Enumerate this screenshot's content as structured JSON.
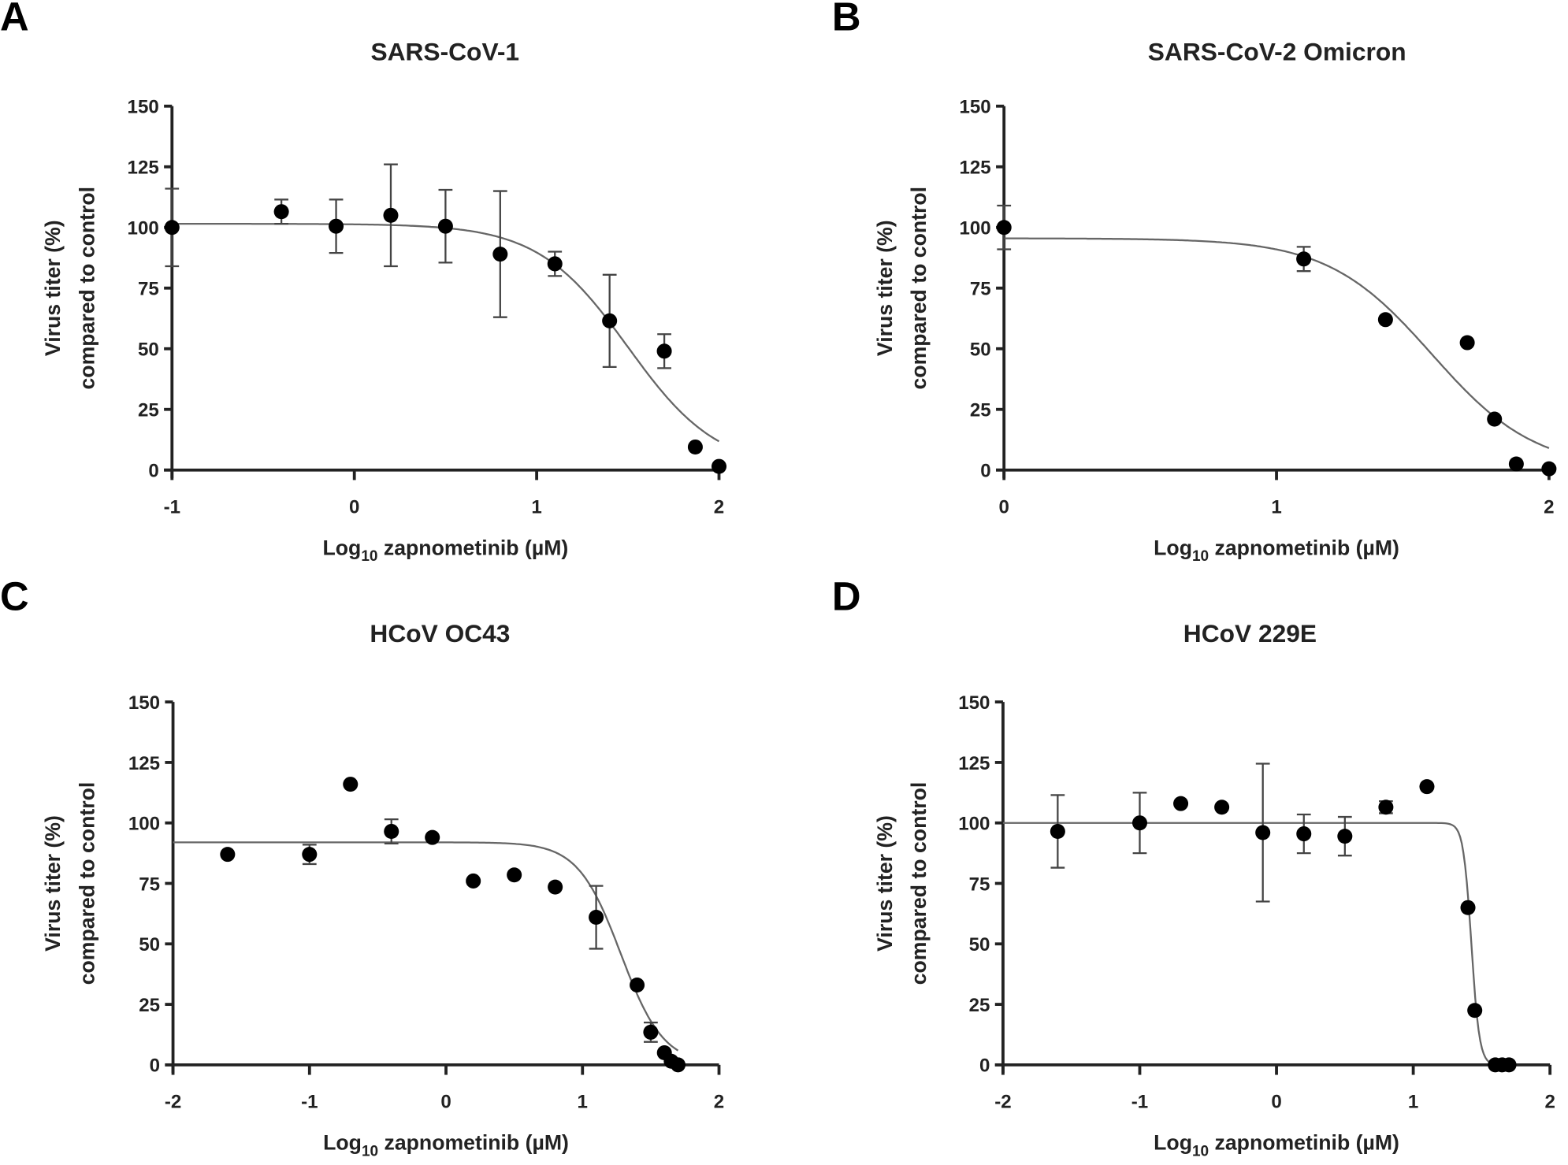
{
  "chart_data": [
    {
      "type": "scatter",
      "panel": "A",
      "title": "SARS-CoV-1",
      "xlabel": "Log10 zapnometinib (µM)",
      "xlabel_main": "Log",
      "xlabel_sub": "10",
      "xlabel_rest": " zapnometinib (µM)",
      "ylabel": [
        "Virus titer (%)",
        "compared to control"
      ],
      "xlim": [
        -1,
        2
      ],
      "ylim": [
        0,
        150
      ],
      "xticks": [
        "-1",
        "0",
        "1",
        "2"
      ],
      "xtickvals": [
        -1,
        0,
        1,
        2
      ],
      "yticks": [
        "0",
        "25",
        "50",
        "75",
        "100",
        "125",
        "150"
      ],
      "ytickvals": [
        0,
        25,
        50,
        75,
        100,
        125,
        150
      ],
      "points": [
        {
          "x": -1,
          "y": 100,
          "err": 16
        },
        {
          "x": -0.4,
          "y": 106.5,
          "err": 5
        },
        {
          "x": -0.1,
          "y": 100.5,
          "err": 11
        },
        {
          "x": 0.2,
          "y": 105,
          "err": 21
        },
        {
          "x": 0.5,
          "y": 100.5,
          "err": 15
        },
        {
          "x": 0.8,
          "y": 89,
          "err": 26
        },
        {
          "x": 1.1,
          "y": 85,
          "err": 5
        },
        {
          "x": 1.4,
          "y": 61.5,
          "err": 19
        },
        {
          "x": 1.7,
          "y": 49,
          "err": 7
        },
        {
          "x": 1.87,
          "y": 9.5,
          "err": 0
        },
        {
          "x": 2.0,
          "y": 1.5,
          "err": 0
        }
      ],
      "fit": {
        "top": 101.5,
        "bottom": 0,
        "log_ic50": 1.5,
        "hill": 1.76,
        "xrange": [
          -1,
          2
        ]
      }
    },
    {
      "type": "scatter",
      "panel": "B",
      "title": "SARS-CoV-2 Omicron",
      "xlabel": "Log10 zapnometinib (µM)",
      "xlabel_main": "Log",
      "xlabel_sub": "10",
      "xlabel_rest": " zapnometinib (µM)",
      "ylabel": [
        "Virus titer (%)",
        "compared to control"
      ],
      "xlim": [
        0,
        2
      ],
      "ylim": [
        0,
        150
      ],
      "xticks": [
        "0",
        "1",
        "2"
      ],
      "xtickvals": [
        0,
        1,
        2
      ],
      "yticks": [
        "0",
        "25",
        "50",
        "75",
        "100",
        "125",
        "150"
      ],
      "ytickvals": [
        0,
        25,
        50,
        75,
        100,
        125,
        150
      ],
      "points": [
        {
          "x": 0,
          "y": 100,
          "err": 9
        },
        {
          "x": 1.1,
          "y": 87,
          "err": 5
        },
        {
          "x": 1.4,
          "y": 62,
          "err": 0
        },
        {
          "x": 1.7,
          "y": 52.5,
          "err": 0
        },
        {
          "x": 1.8,
          "y": 21,
          "err": 0
        },
        {
          "x": 1.88,
          "y": 2.5,
          "err": 0
        },
        {
          "x": 2.0,
          "y": 0.5,
          "err": 0
        }
      ],
      "fit": {
        "top": 95.5,
        "bottom": 0,
        "log_ic50": 1.57,
        "hill": 2.28,
        "xrange": [
          0,
          2
        ]
      }
    },
    {
      "type": "scatter",
      "panel": "C",
      "title": "HCoV OC43",
      "xlabel": "Log10 zapnometinib (µM)",
      "xlabel_main": "Log",
      "xlabel_sub": "10",
      "xlabel_rest": " zapnometinib (µM)",
      "ylabel": [
        "Virus titer (%)",
        "compared to control"
      ],
      "xlim": [
        -2,
        2
      ],
      "ylim": [
        0,
        150
      ],
      "xticks": [
        "-2",
        "-1",
        "0",
        "1",
        "2"
      ],
      "xtickvals": [
        -2,
        -1,
        0,
        1,
        2
      ],
      "yticks": [
        "0",
        "25",
        "50",
        "75",
        "100",
        "125",
        "150"
      ],
      "ytickvals": [
        0,
        25,
        50,
        75,
        100,
        125,
        150
      ],
      "points": [
        {
          "x": -1.6,
          "y": 87,
          "err": 0
        },
        {
          "x": -1,
          "y": 87,
          "err": 4
        },
        {
          "x": -0.7,
          "y": 116,
          "err": 0
        },
        {
          "x": -0.4,
          "y": 96.5,
          "err": 5
        },
        {
          "x": -0.1,
          "y": 94,
          "err": 0
        },
        {
          "x": 0.2,
          "y": 76,
          "err": 0
        },
        {
          "x": 0.5,
          "y": 78.5,
          "err": 0
        },
        {
          "x": 0.8,
          "y": 73.5,
          "err": 0
        },
        {
          "x": 1.1,
          "y": 61,
          "err": 13
        },
        {
          "x": 1.4,
          "y": 33,
          "err": 0
        },
        {
          "x": 1.5,
          "y": 13.5,
          "err": 4
        },
        {
          "x": 1.6,
          "y": 5,
          "err": 0
        },
        {
          "x": 1.65,
          "y": 1.5,
          "err": 0
        },
        {
          "x": 1.7,
          "y": 0,
          "err": 0
        }
      ],
      "fit": {
        "top": 92,
        "bottom": 0,
        "log_ic50": 1.28,
        "hill": 2.77,
        "xrange": [
          -2,
          1.7
        ]
      }
    },
    {
      "type": "scatter",
      "panel": "D",
      "title": "HCoV 229E",
      "xlabel": "Log10 zapnometinib (µM)",
      "xlabel_main": "Log",
      "xlabel_sub": "10",
      "xlabel_rest": " zapnometinib (µM)",
      "ylabel": [
        "Virus titer (%)",
        "compared to control"
      ],
      "xlim": [
        -2,
        2
      ],
      "ylim": [
        0,
        150
      ],
      "xticks": [
        "-2",
        "-1",
        "0",
        "1",
        "2"
      ],
      "xtickvals": [
        -2,
        -1,
        0,
        1,
        2
      ],
      "yticks": [
        "0",
        "25",
        "50",
        "75",
        "100",
        "125",
        "150"
      ],
      "ytickvals": [
        0,
        25,
        50,
        75,
        100,
        125,
        150
      ],
      "points": [
        {
          "x": -1.6,
          "y": 96.5,
          "err": 15
        },
        {
          "x": -1,
          "y": 100,
          "err": 12.5
        },
        {
          "x": -0.7,
          "y": 108,
          "err": 0
        },
        {
          "x": -0.4,
          "y": 106.5,
          "err": 0
        },
        {
          "x": -0.1,
          "y": 96,
          "err": 28.5
        },
        {
          "x": 0.2,
          "y": 95.5,
          "err": 8
        },
        {
          "x": 0.5,
          "y": 94.5,
          "err": 8
        },
        {
          "x": 0.8,
          "y": 106.5,
          "err": 2.5
        },
        {
          "x": 1.1,
          "y": 115,
          "err": 0
        },
        {
          "x": 1.4,
          "y": 65,
          "err": 0
        },
        {
          "x": 1.45,
          "y": 22.5,
          "err": 0
        },
        {
          "x": 1.6,
          "y": 0,
          "err": 0
        },
        {
          "x": 1.65,
          "y": 0,
          "err": 0
        },
        {
          "x": 1.7,
          "y": 0,
          "err": 0
        }
      ],
      "fit": {
        "top": 100,
        "bottom": 0,
        "log_ic50": 1.425,
        "hill": 14.7,
        "xrange": [
          -2,
          1.7
        ]
      }
    }
  ]
}
